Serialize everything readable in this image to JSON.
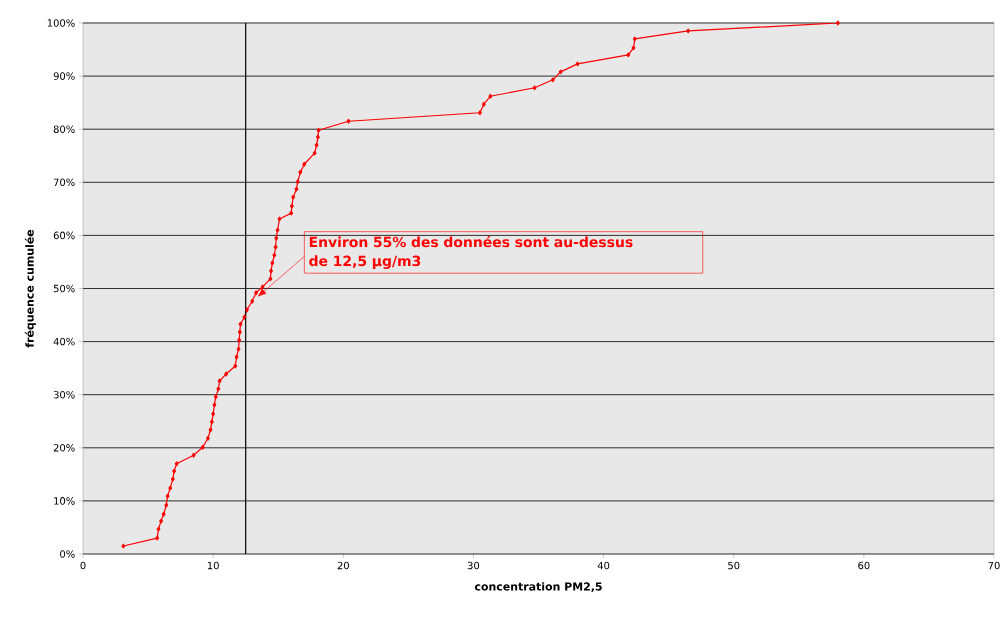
{
  "chart_data": {
    "type": "line",
    "xlabel": "concentration PM2,5",
    "ylabel": "fréquence cumulée",
    "x": [
      3.1,
      5.7,
      5.8,
      6.0,
      6.2,
      6.4,
      6.5,
      6.7,
      6.9,
      7.0,
      7.2,
      8.5,
      9.2,
      9.6,
      9.8,
      9.9,
      10.0,
      10.1,
      10.2,
      10.4,
      10.5,
      11.0,
      11.7,
      11.8,
      11.95,
      12.0,
      12.05,
      12.1,
      12.4,
      12.6,
      13.0,
      13.3,
      13.8,
      14.4,
      14.45,
      14.55,
      14.7,
      14.8,
      14.85,
      14.95,
      15.1,
      16.0,
      16.05,
      16.15,
      16.4,
      16.5,
      16.7,
      17.0,
      17.8,
      17.95,
      18.05,
      18.1,
      20.4,
      30.5,
      30.8,
      31.3,
      34.7,
      36.1,
      36.7,
      38.0,
      41.9,
      42.3,
      42.4,
      46.5,
      58.0
    ],
    "series": [
      {
        "color": "#ff0000",
        "values": [
          1.5,
          3.0,
          4.7,
          6.2,
          7.5,
          9.2,
          10.9,
          12.4,
          14.1,
          15.6,
          17.0,
          18.6,
          20.1,
          21.8,
          23.4,
          24.9,
          26.4,
          28.1,
          29.6,
          31.1,
          32.6,
          33.9,
          35.4,
          37.1,
          38.6,
          40.3,
          41.8,
          43.3,
          44.6,
          46.0,
          47.6,
          49.2,
          50.3,
          51.8,
          53.3,
          54.8,
          56.3,
          57.8,
          59.5,
          61.0,
          63.1,
          64.2,
          65.5,
          67.2,
          68.7,
          70.1,
          71.9,
          73.4,
          75.5,
          77.0,
          78.5,
          79.8,
          81.5,
          83.1,
          84.7,
          86.2,
          87.8,
          89.3,
          90.8,
          92.3,
          94.0,
          95.3,
          97.0,
          98.5,
          100
        ]
      }
    ],
    "xlim": [
      0,
      70
    ],
    "xticks": [
      0,
      10,
      20,
      30,
      40,
      50,
      60,
      70
    ],
    "ylim": [
      0,
      100
    ],
    "yticks": [
      {
        "value": 0,
        "label": "0%"
      },
      {
        "value": 10,
        "label": "10%"
      },
      {
        "value": 20,
        "label": "20%"
      },
      {
        "value": 30,
        "label": "30%"
      },
      {
        "value": 40,
        "label": "40%"
      },
      {
        "value": 50,
        "label": "50%"
      },
      {
        "value": 60,
        "label": "60%"
      },
      {
        "value": 70,
        "label": "70%"
      },
      {
        "value": 80,
        "label": "80%"
      },
      {
        "value": 90,
        "label": "90%"
      },
      {
        "value": 100,
        "label": "100%"
      }
    ],
    "grid": "y",
    "marker": "diamond",
    "line_style": "solid",
    "ref_lines": [
      {
        "axis": "x",
        "value": 12.5,
        "color": "#000000"
      }
    ],
    "annotations": [
      {
        "text": "Environ 55% des données sont au-dessus de 12,5 µg/m3",
        "x": 13.4,
        "y": 48.4
      }
    ]
  }
}
